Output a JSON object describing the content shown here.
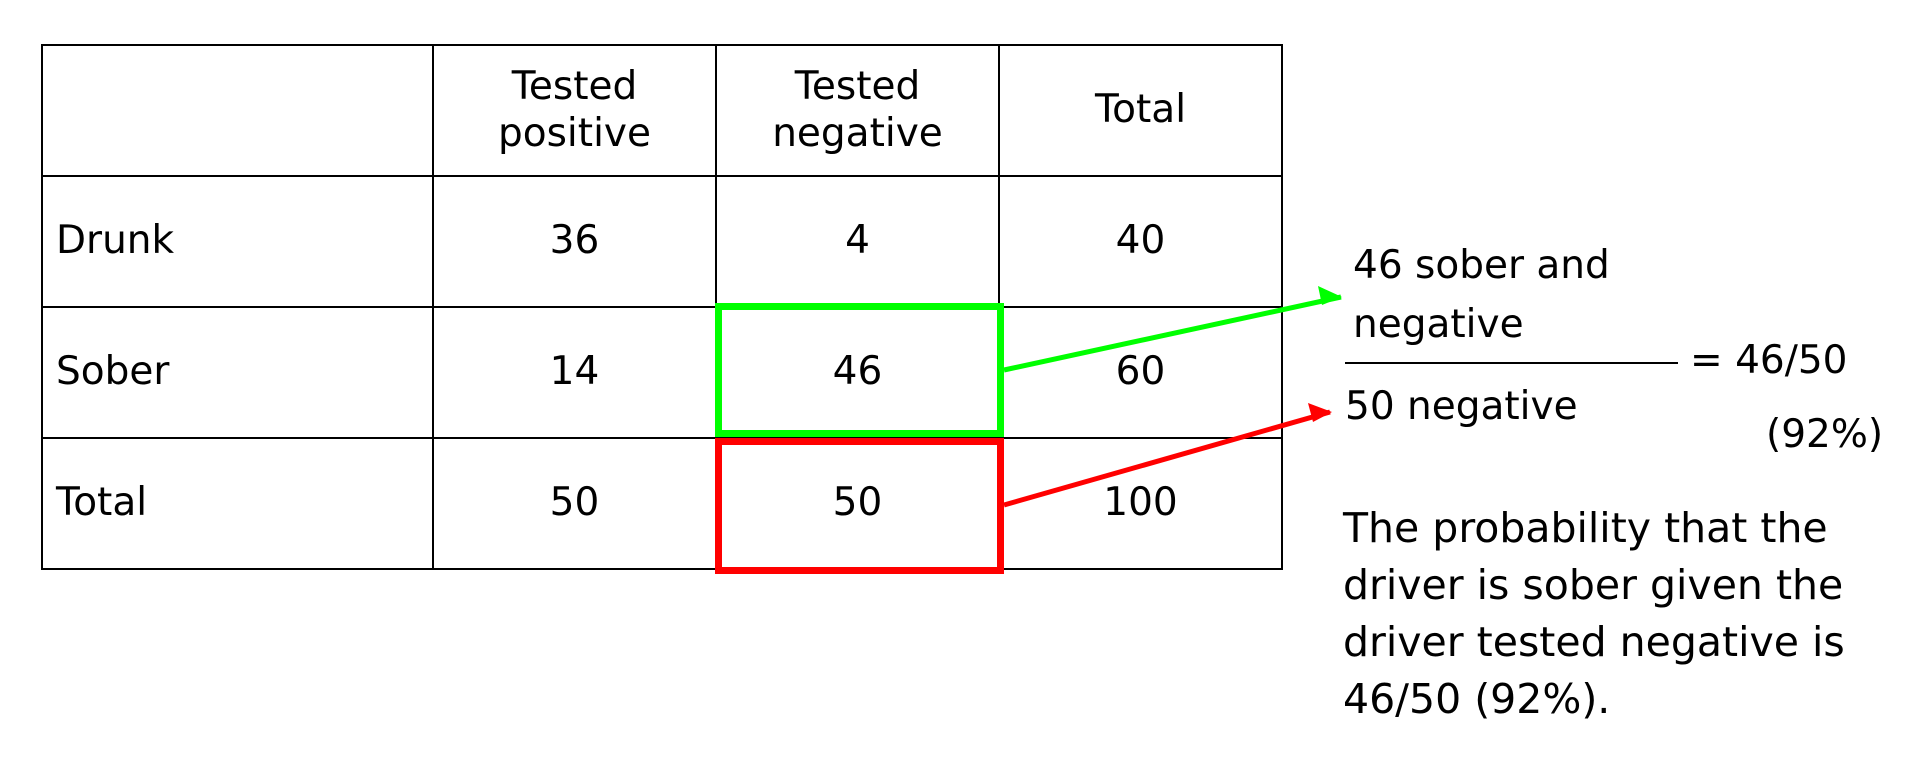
{
  "table": {
    "header": [
      "",
      "Tested\npositive",
      "Tested\nnegative",
      "Total"
    ],
    "rows": [
      {
        "label": "Drunk",
        "values": [
          "36",
          "4",
          "40"
        ]
      },
      {
        "label": "Sober",
        "values": [
          "14",
          "46",
          "60"
        ]
      },
      {
        "label": "Total",
        "values": [
          "50",
          "50",
          "100"
        ]
      }
    ]
  },
  "highlights": {
    "numerator": {
      "row": 1,
      "col": 1,
      "color": "#00ff00"
    },
    "denominator": {
      "row": 2,
      "col": 1,
      "color": "#ff0000"
    }
  },
  "fraction": {
    "numerator_line1": "46 sober and",
    "numerator_line2": "negative",
    "denominator": "50 negative",
    "result": "= 46/50",
    "percent": "(92%)"
  },
  "explanation": "The probability that the driver is sober given the driver tested negative is 46/50 (92%)."
}
